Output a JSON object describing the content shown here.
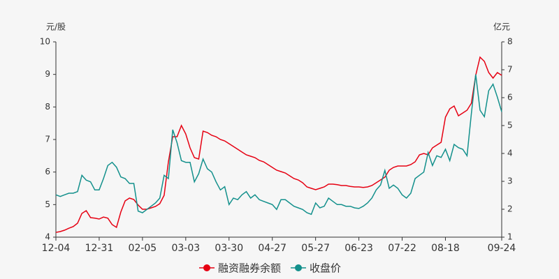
{
  "chart_data": {
    "type": "line",
    "y_label": "元/股",
    "y2_label": "亿元",
    "categories": [
      "12-04",
      null,
      null,
      null,
      null,
      null,
      null,
      null,
      null,
      null,
      "12-31",
      null,
      null,
      null,
      null,
      null,
      null,
      null,
      null,
      null,
      "02-05",
      null,
      null,
      null,
      null,
      null,
      null,
      null,
      null,
      null,
      "03-03",
      null,
      null,
      null,
      null,
      null,
      null,
      null,
      null,
      null,
      "03-30",
      null,
      null,
      null,
      null,
      null,
      null,
      null,
      null,
      null,
      "04-27",
      null,
      null,
      null,
      null,
      null,
      null,
      null,
      null,
      null,
      "05-27",
      null,
      null,
      null,
      null,
      null,
      null,
      null,
      null,
      null,
      "06-23",
      null,
      null,
      null,
      null,
      null,
      null,
      null,
      null,
      null,
      "07-22",
      null,
      null,
      null,
      null,
      null,
      null,
      null,
      null,
      null,
      "08-18",
      null,
      null,
      null,
      null,
      null,
      null,
      null,
      null,
      null,
      null,
      null,
      null,
      "09-24"
    ],
    "series": [
      {
        "name": "融资融券余额",
        "color": "#e60012",
        "axis": "y2",
        "values": [
          1.17,
          1.2,
          1.25,
          1.32,
          1.38,
          1.5,
          1.85,
          1.95,
          1.7,
          1.68,
          1.65,
          1.72,
          1.68,
          1.45,
          1.35,
          1.9,
          2.3,
          2.4,
          2.35,
          2.15,
          2.0,
          2.0,
          2.05,
          2.1,
          2.2,
          2.5,
          3.7,
          4.6,
          4.6,
          5.0,
          4.7,
          4.2,
          3.85,
          3.8,
          4.8,
          4.75,
          4.65,
          4.6,
          4.5,
          4.45,
          4.35,
          4.25,
          4.15,
          4.05,
          3.95,
          3.9,
          3.85,
          3.75,
          3.7,
          3.6,
          3.5,
          3.4,
          3.35,
          3.3,
          3.2,
          3.1,
          3.05,
          2.95,
          2.8,
          2.75,
          2.7,
          2.75,
          2.8,
          2.9,
          2.9,
          2.88,
          2.85,
          2.85,
          2.82,
          2.8,
          2.8,
          2.78,
          2.8,
          2.85,
          2.95,
          3.05,
          3.15,
          3.4,
          3.5,
          3.55,
          3.55,
          3.55,
          3.6,
          3.7,
          3.95,
          4.0,
          3.95,
          4.2,
          4.3,
          4.4,
          5.3,
          5.6,
          5.7,
          5.35,
          5.45,
          5.55,
          5.8,
          6.8,
          7.45,
          7.3,
          6.9,
          6.7,
          6.9,
          6.8
        ]
      },
      {
        "name": "收盘价",
        "color": "#13908c",
        "values": [
          5.3,
          5.25,
          5.3,
          5.35,
          5.35,
          5.4,
          5.9,
          5.75,
          5.7,
          5.45,
          5.45,
          5.8,
          6.2,
          6.3,
          6.15,
          5.85,
          5.8,
          5.65,
          5.65,
          4.8,
          4.75,
          4.85,
          4.95,
          5.05,
          5.2,
          5.9,
          5.8,
          7.3,
          6.9,
          6.35,
          6.3,
          6.3,
          5.7,
          5.95,
          6.4,
          6.1,
          6.0,
          5.7,
          5.45,
          5.55,
          5.0,
          5.2,
          5.15,
          5.3,
          5.4,
          5.2,
          5.3,
          5.15,
          5.1,
          5.05,
          5.0,
          4.85,
          5.15,
          5.15,
          5.05,
          4.95,
          4.9,
          4.85,
          4.75,
          4.7,
          5.05,
          4.9,
          4.95,
          5.2,
          5.1,
          5.0,
          5.0,
          4.95,
          4.95,
          4.9,
          4.88,
          4.95,
          5.05,
          5.2,
          5.45,
          5.6,
          6.05,
          5.5,
          5.6,
          5.5,
          5.3,
          5.2,
          5.35,
          5.8,
          5.9,
          6.0,
          6.6,
          6.2,
          6.5,
          6.45,
          6.7,
          6.35,
          6.85,
          6.75,
          6.7,
          6.5,
          7.8,
          9.0,
          7.9,
          7.7,
          8.5,
          8.7,
          8.3,
          7.85
        ]
      }
    ],
    "ylim": [
      4,
      10
    ],
    "yticks": [
      4,
      5,
      6,
      7,
      8,
      9,
      10
    ],
    "y2lim": [
      1,
      8
    ],
    "y2ticks": [
      1,
      2,
      3,
      4,
      5,
      6,
      7,
      8
    ],
    "legend": "bottom"
  }
}
